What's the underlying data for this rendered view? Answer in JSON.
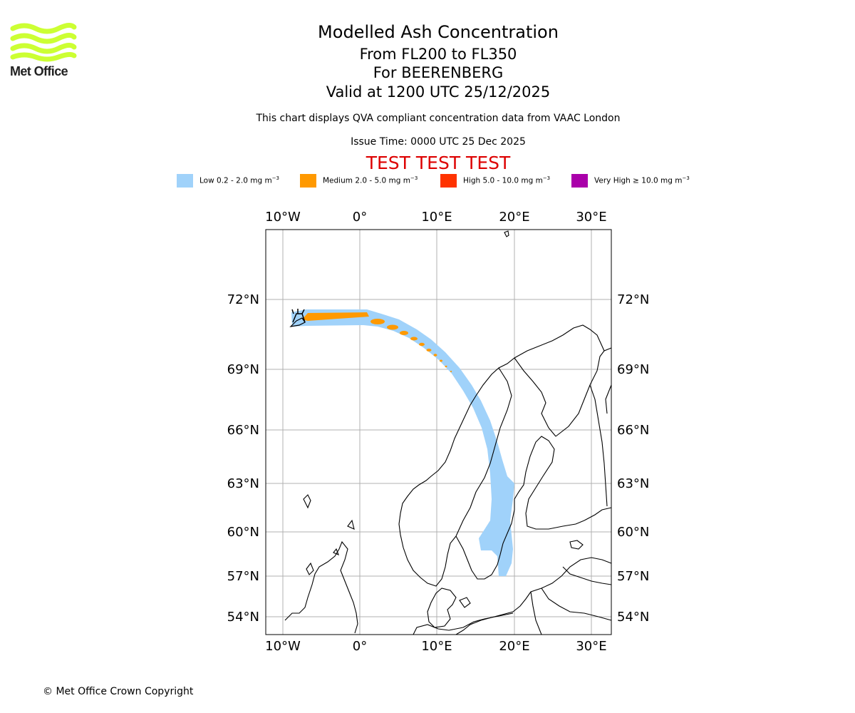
{
  "header": {
    "title": "Modelled Ash Concentration",
    "levels": "From FL200 to FL350",
    "volcano": "For BEERENBERG",
    "valid": "Valid at 1200 UTC 25/12/2025",
    "description": "This chart displays QVA compliant concentration data from VAAC London",
    "issue_time": "Issue Time: 0000 UTC 25 Dec 2025",
    "test_banner": "TEST TEST TEST"
  },
  "logo": {
    "text": "Met Office",
    "color": "#ccff33"
  },
  "legend": [
    {
      "label": "Low 0.2 - 2.0 mg m",
      "color": "#a0d2fa"
    },
    {
      "label": "Medium 2.0 - 5.0 mg m",
      "color": "#ff9900"
    },
    {
      "label": "High 5.0 - 10.0 mg m",
      "color": "#ff3300"
    },
    {
      "label": "Very High ≥ 10.0 mg m",
      "color": "#aa00aa"
    }
  ],
  "legend_unit_exponent": "−3",
  "map": {
    "lon_labels": [
      "10°W",
      "0°",
      "10°E",
      "20°E",
      "30°E"
    ],
    "lat_labels": [
      "72°N",
      "69°N",
      "66°N",
      "63°N",
      "60°N",
      "57°N",
      "54°N"
    ],
    "volcano_symbol": "volcano-icon"
  },
  "footer": {
    "copyright": "© Met Office Crown Copyright"
  }
}
